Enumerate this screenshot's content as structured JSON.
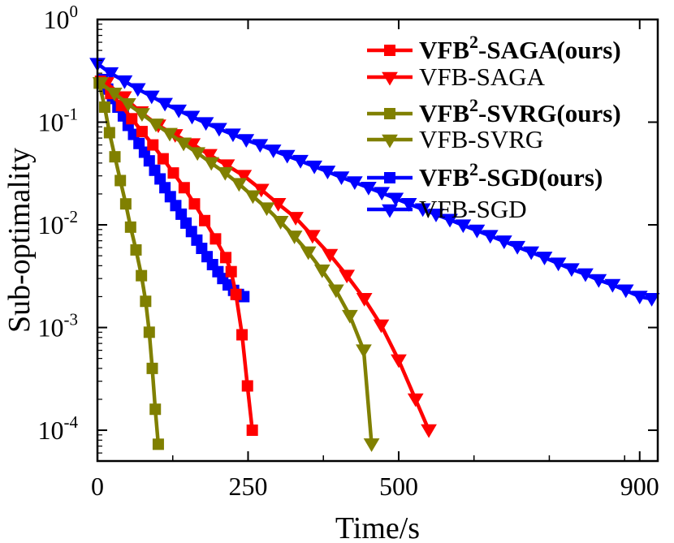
{
  "chart_data": {
    "type": "line",
    "title": "",
    "xlabel": "Time/s",
    "ylabel": "Sub-optimality",
    "xlim": [
      0,
      930
    ],
    "ylim_log10": [
      -4.3,
      0
    ],
    "x_ticks": [
      {
        "value": 0,
        "label": "0"
      },
      {
        "value": 250,
        "label": "250"
      },
      {
        "value": 500,
        "label": "500"
      },
      {
        "value": 900,
        "label": "900"
      }
    ],
    "y_ticks": [
      {
        "exp": 0,
        "base": "10",
        "sup": "0"
      },
      {
        "exp": -1,
        "base": "10",
        "sup": "-1"
      },
      {
        "exp": -2,
        "base": "10",
        "sup": "-2"
      },
      {
        "exp": -3,
        "base": "10",
        "sup": "-3"
      },
      {
        "exp": -4,
        "base": "10",
        "sup": "-4"
      }
    ],
    "legend_position": "top-right",
    "series": [
      {
        "name": "VFB²-SAGA(ours)",
        "name_main": "VFB",
        "name_sup": "2",
        "name_rest": "-SAGA(ours)",
        "bold": true,
        "color": "#ff0000",
        "marker": "square",
        "x": [
          5,
          22,
          40,
          57,
          74,
          92,
          109,
          126,
          144,
          161,
          178,
          196,
          213,
          222,
          230,
          240,
          249,
          257
        ],
        "y": [
          0.25,
          0.19,
          0.145,
          0.108,
          0.081,
          0.06,
          0.044,
          0.032,
          0.023,
          0.016,
          0.011,
          0.0073,
          0.0048,
          0.0035,
          0.0021,
          0.00085,
          0.00027,
          0.0001
        ]
      },
      {
        "name": "VFB-SAGA",
        "bold": false,
        "color": "#ff0000",
        "marker": "triangle-down",
        "x": [
          15,
          44,
          72,
          101,
          129,
          158,
          186,
          215,
          243,
          272,
          300,
          329,
          357,
          386,
          414,
          443,
          471,
          500,
          528,
          550
        ],
        "y": [
          0.24,
          0.175,
          0.125,
          0.093,
          0.075,
          0.061,
          0.048,
          0.038,
          0.03,
          0.022,
          0.016,
          0.0117,
          0.0078,
          0.0051,
          0.0032,
          0.0019,
          0.00105,
          0.00048,
          0.0002,
          0.0001
        ]
      },
      {
        "name": "VFB²-SVRG(ours)",
        "name_main": "VFB",
        "name_sup": "2",
        "name_rest": "-SVRG(ours)",
        "bold": true,
        "color": "#808000",
        "marker": "square",
        "x": [
          3,
          12,
          20,
          29,
          38,
          47,
          55,
          64,
          73,
          80,
          86,
          91,
          96,
          101
        ],
        "y": [
          0.24,
          0.14,
          0.079,
          0.046,
          0.027,
          0.016,
          0.0095,
          0.0057,
          0.0032,
          0.0018,
          0.0009,
          0.0004,
          0.00016,
          7.3e-05
        ]
      },
      {
        "name": "VFB-SVRG",
        "bold": false,
        "color": "#808000",
        "marker": "triangle-down",
        "x": [
          5,
          28,
          51,
          74,
          97,
          120,
          143,
          166,
          189,
          212,
          235,
          258,
          281,
          304,
          327,
          350,
          373,
          396,
          419,
          442,
          455
        ],
        "y": [
          0.24,
          0.19,
          0.15,
          0.12,
          0.095,
          0.077,
          0.062,
          0.05,
          0.04,
          0.032,
          0.025,
          0.019,
          0.0145,
          0.0107,
          0.0077,
          0.0054,
          0.0036,
          0.0023,
          0.0013,
          0.0006,
          7.3e-05
        ]
      },
      {
        "name": "VFB²-SGD(ours)",
        "name_main": "VFB",
        "name_sup": "2",
        "name_rest": "-SGD(ours)",
        "bold": true,
        "color": "#0000ff",
        "marker": "square",
        "x": [
          8,
          17,
          25,
          34,
          43,
          51,
          60,
          69,
          78,
          86,
          95,
          104,
          112,
          121,
          130,
          139,
          147,
          156,
          165,
          173,
          182,
          191,
          200,
          208,
          217,
          226,
          234,
          243
        ],
        "y": [
          0.26,
          0.21,
          0.17,
          0.14,
          0.115,
          0.093,
          0.076,
          0.062,
          0.051,
          0.042,
          0.034,
          0.028,
          0.023,
          0.0188,
          0.0154,
          0.0127,
          0.0104,
          0.0086,
          0.0071,
          0.0059,
          0.0049,
          0.0041,
          0.0035,
          0.003,
          0.0026,
          0.0023,
          0.0021,
          0.002
        ]
      },
      {
        "name": "VFB-SGD",
        "bold": false,
        "color": "#0000ff",
        "marker": "triangle-down",
        "x": [
          0,
          22,
          45,
          67,
          90,
          112,
          135,
          157,
          180,
          202,
          225,
          247,
          270,
          292,
          315,
          337,
          360,
          382,
          405,
          427,
          450,
          472,
          495,
          517,
          540,
          562,
          585,
          607,
          630,
          652,
          675,
          697,
          720,
          742,
          765,
          787,
          810,
          832,
          855,
          877,
          900,
          920
        ],
        "y": [
          0.37,
          0.3,
          0.25,
          0.21,
          0.178,
          0.151,
          0.13,
          0.113,
          0.098,
          0.086,
          0.076,
          0.067,
          0.06,
          0.053,
          0.047,
          0.042,
          0.037,
          0.033,
          0.029,
          0.026,
          0.023,
          0.0205,
          0.018,
          0.016,
          0.0142,
          0.0126,
          0.0112,
          0.0099,
          0.0088,
          0.0078,
          0.0069,
          0.0061,
          0.0054,
          0.0048,
          0.0042,
          0.0037,
          0.0033,
          0.0029,
          0.0026,
          0.0023,
          0.002,
          0.0019
        ]
      }
    ]
  }
}
